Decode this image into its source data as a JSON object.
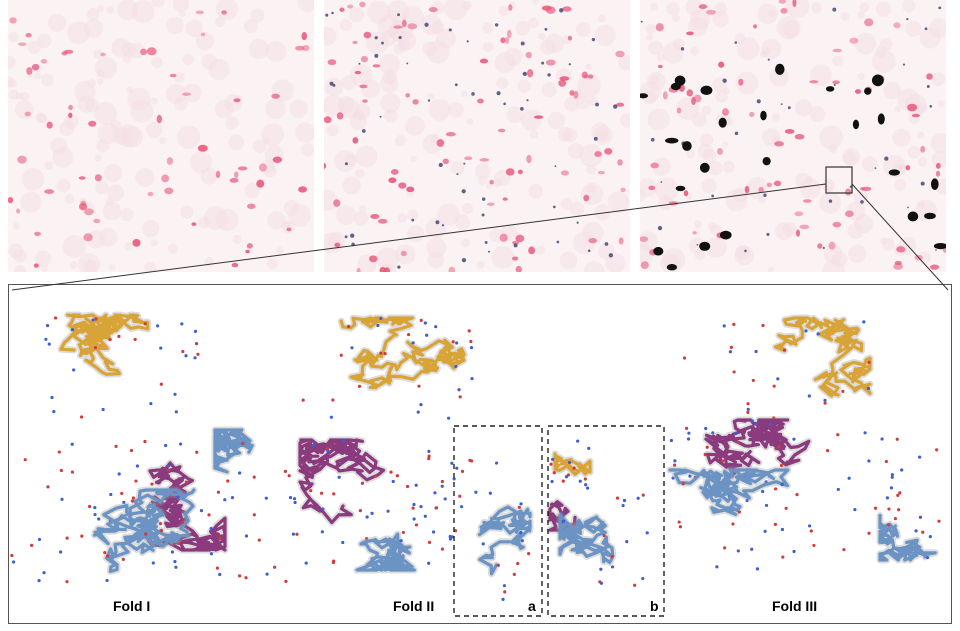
{
  "figure": {
    "panels": [
      {
        "id": "left",
        "stain": "pink-nuclei-sparse"
      },
      {
        "id": "middle",
        "stain": "pink-nuclei-blue-specks"
      },
      {
        "id": "right",
        "stain": "pink-nuclei-black-deposits"
      }
    ],
    "folds": [
      {
        "label": "Fold I"
      },
      {
        "label": "Fold II"
      },
      {
        "label": "Fold III"
      }
    ],
    "detail_boxes": [
      {
        "label": "a"
      },
      {
        "label": "b"
      }
    ],
    "colors": {
      "nuclei": "#e8567a",
      "deposits": "#111111",
      "specks": "#3a3f6e",
      "strand_gold": "#d9a437",
      "strand_magenta": "#8b3a7e",
      "strand_blue": "#6b93c4",
      "density": "#9a9a9a"
    }
  }
}
